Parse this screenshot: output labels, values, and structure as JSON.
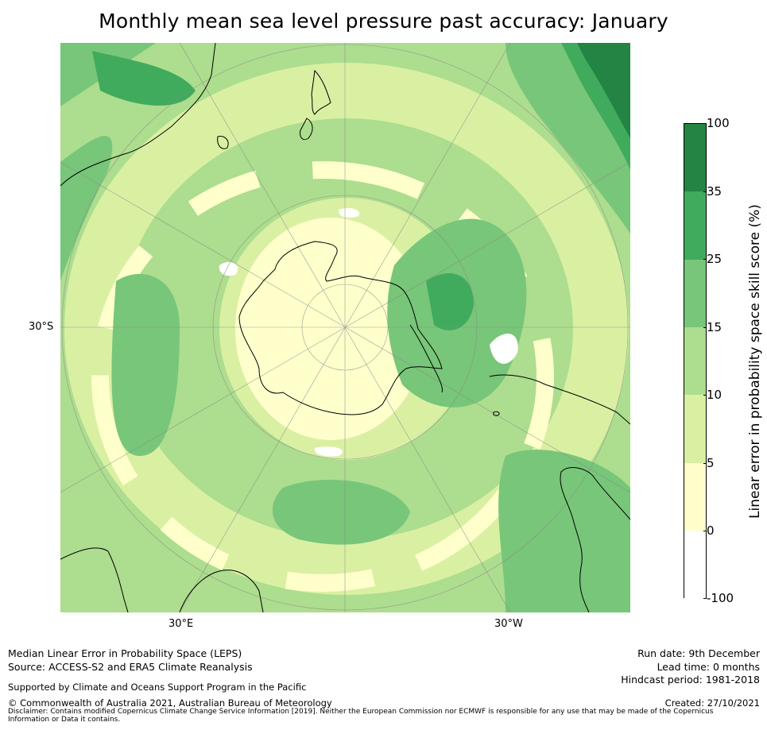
{
  "title": "Monthly mean sea level pressure past accuracy: January",
  "map": {
    "projection": "south-polar-stereographic",
    "lat_label": "30°S",
    "lon_labels": [
      "30°E",
      "30°W"
    ],
    "colors": {
      "white": "#ffffff",
      "c0_5": "#ffffcc",
      "c5_10": "#d9f0a3",
      "c10_15": "#addd8e",
      "c15_25": "#78c679",
      "c25_35": "#41ab5d",
      "c35_100": "#238443",
      "coast": "#000000",
      "grid": "#888888"
    },
    "regions": {
      "antarctica": "Antarctica",
      "new_zealand": "New Zealand",
      "australia": "Australia",
      "south_america": "South America",
      "africa": "Africa"
    }
  },
  "colorbar": {
    "label": "Linear error in probability space skill score (%)",
    "bounds": [
      "100",
      "35",
      "25",
      "15",
      "10",
      "5",
      "0",
      "-100"
    ],
    "bin_colors": [
      "#238443",
      "#41ab5d",
      "#78c679",
      "#addd8e",
      "#d9f0a3",
      "#ffffcc",
      "#ffffff"
    ]
  },
  "footer": {
    "left_line1": "Median Linear Error in Probability Space (LEPS)",
    "left_line2": "Source: ACCESS-S2 and ERA5 Climate Reanalysis",
    "left_line3": "Supported by Climate and Oceans Support Program in the Pacific",
    "left_line4": "© Commonwealth of Australia 2021, Australian Bureau of Meteorology",
    "right_line1": "Run date: 9th December",
    "right_line2": "Lead time: 0 months",
    "right_line3": "Hindcast period: 1981-2018",
    "right_line4": "Created: 27/10/2021",
    "disclaimer_line1": "Disclaimer: Contains modified Copernicus Climate Change Service Information [2019]. Neither the European Commission nor ECMWF is responsible for any use that may be made of the Copernicus",
    "disclaimer_line2": "Information or Data it contains."
  }
}
